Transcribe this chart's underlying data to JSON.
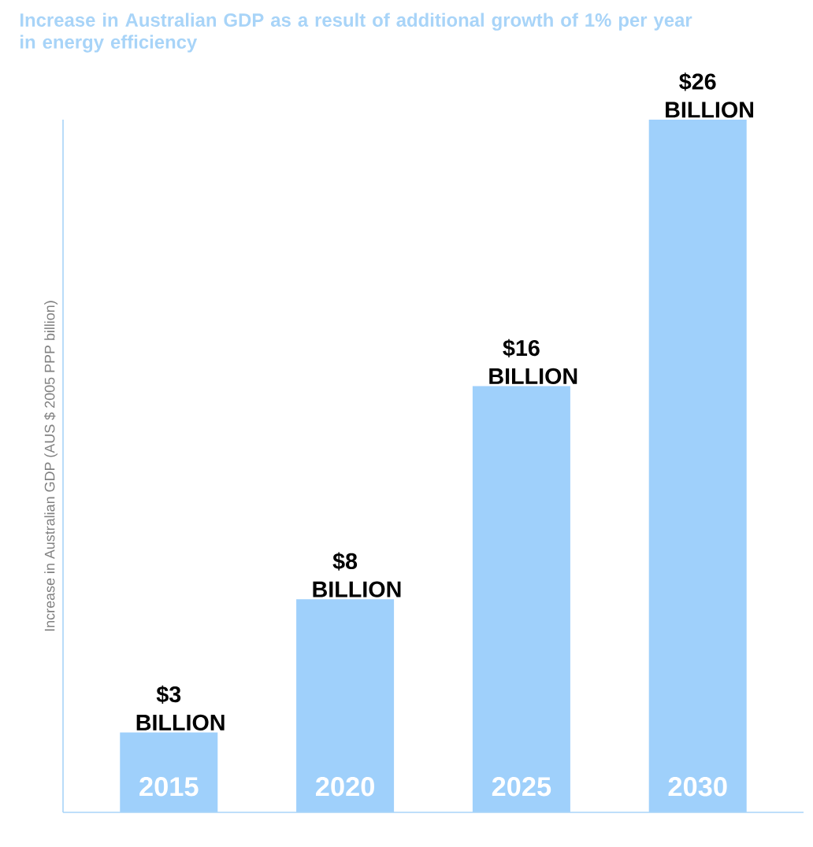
{
  "chart_data": {
    "type": "bar",
    "title": "Increase in Australian GDP as a result of additional growth of 1% per year in energy efficiency",
    "ylabel": "Increase in Australian GDP (AUS $ 2005 PPP billion)",
    "categories": [
      "2015",
      "2020",
      "2025",
      "2030"
    ],
    "values": [
      3,
      8,
      16,
      26
    ],
    "value_labels": [
      "$3 BILLION",
      "$8 BILLION",
      "$16 BILLION",
      "$26 BILLION"
    ],
    "color": "#9fd0fb"
  }
}
